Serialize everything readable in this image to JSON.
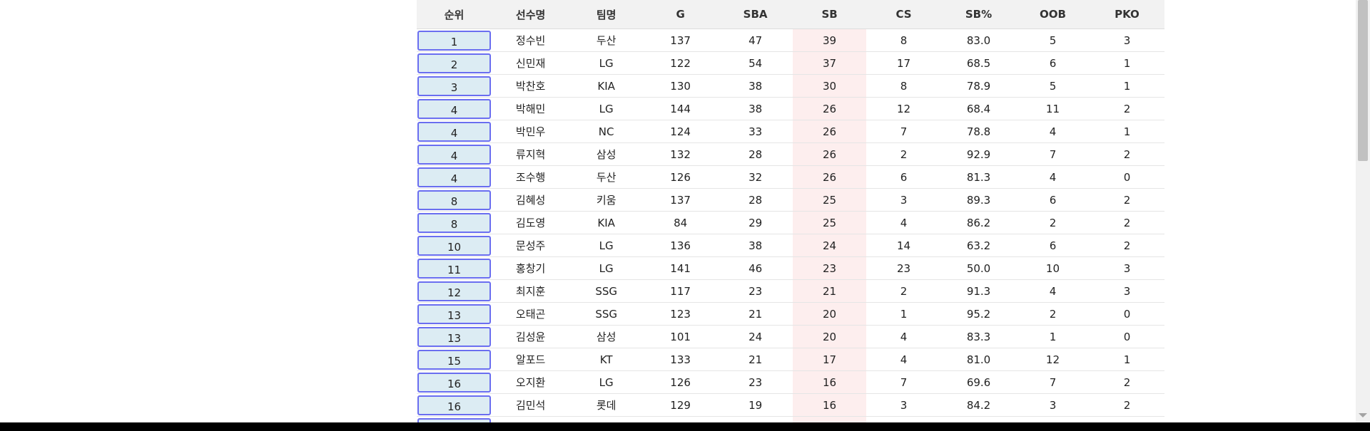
{
  "table": {
    "headers": {
      "rank": "순위",
      "name": "선수명",
      "team": "팀명",
      "g": "G",
      "sba": "SBA",
      "sb": "SB",
      "cs": "CS",
      "sbp": "SB%",
      "oob": "OOB",
      "pko": "PKO"
    },
    "rows": [
      {
        "rank": "1",
        "name": "정수빈",
        "team": "두산",
        "g": "137",
        "sba": "47",
        "sb": "39",
        "cs": "8",
        "sbp": "83.0",
        "oob": "5",
        "pko": "3"
      },
      {
        "rank": "2",
        "name": "신민재",
        "team": "LG",
        "g": "122",
        "sba": "54",
        "sb": "37",
        "cs": "17",
        "sbp": "68.5",
        "oob": "6",
        "pko": "1"
      },
      {
        "rank": "3",
        "name": "박찬호",
        "team": "KIA",
        "g": "130",
        "sba": "38",
        "sb": "30",
        "cs": "8",
        "sbp": "78.9",
        "oob": "5",
        "pko": "1"
      },
      {
        "rank": "4",
        "name": "박해민",
        "team": "LG",
        "g": "144",
        "sba": "38",
        "sb": "26",
        "cs": "12",
        "sbp": "68.4",
        "oob": "11",
        "pko": "2"
      },
      {
        "rank": "4",
        "name": "박민우",
        "team": "NC",
        "g": "124",
        "sba": "33",
        "sb": "26",
        "cs": "7",
        "sbp": "78.8",
        "oob": "4",
        "pko": "1"
      },
      {
        "rank": "4",
        "name": "류지혁",
        "team": "삼성",
        "g": "132",
        "sba": "28",
        "sb": "26",
        "cs": "2",
        "sbp": "92.9",
        "oob": "7",
        "pko": "2"
      },
      {
        "rank": "4",
        "name": "조수행",
        "team": "두산",
        "g": "126",
        "sba": "32",
        "sb": "26",
        "cs": "6",
        "sbp": "81.3",
        "oob": "4",
        "pko": "0"
      },
      {
        "rank": "8",
        "name": "김혜성",
        "team": "키움",
        "g": "137",
        "sba": "28",
        "sb": "25",
        "cs": "3",
        "sbp": "89.3",
        "oob": "6",
        "pko": "2"
      },
      {
        "rank": "8",
        "name": "김도영",
        "team": "KIA",
        "g": "84",
        "sba": "29",
        "sb": "25",
        "cs": "4",
        "sbp": "86.2",
        "oob": "2",
        "pko": "2"
      },
      {
        "rank": "10",
        "name": "문성주",
        "team": "LG",
        "g": "136",
        "sba": "38",
        "sb": "24",
        "cs": "14",
        "sbp": "63.2",
        "oob": "6",
        "pko": "2"
      },
      {
        "rank": "11",
        "name": "홍창기",
        "team": "LG",
        "g": "141",
        "sba": "46",
        "sb": "23",
        "cs": "23",
        "sbp": "50.0",
        "oob": "10",
        "pko": "3"
      },
      {
        "rank": "12",
        "name": "최지훈",
        "team": "SSG",
        "g": "117",
        "sba": "23",
        "sb": "21",
        "cs": "2",
        "sbp": "91.3",
        "oob": "4",
        "pko": "3"
      },
      {
        "rank": "13",
        "name": "오태곤",
        "team": "SSG",
        "g": "123",
        "sba": "21",
        "sb": "20",
        "cs": "1",
        "sbp": "95.2",
        "oob": "2",
        "pko": "0"
      },
      {
        "rank": "13",
        "name": "김성윤",
        "team": "삼성",
        "g": "101",
        "sba": "24",
        "sb": "20",
        "cs": "4",
        "sbp": "83.3",
        "oob": "1",
        "pko": "0"
      },
      {
        "rank": "15",
        "name": "알포드",
        "team": "KT",
        "g": "133",
        "sba": "21",
        "sb": "17",
        "cs": "4",
        "sbp": "81.0",
        "oob": "12",
        "pko": "1"
      },
      {
        "rank": "16",
        "name": "오지환",
        "team": "LG",
        "g": "126",
        "sba": "23",
        "sb": "16",
        "cs": "7",
        "sbp": "69.6",
        "oob": "7",
        "pko": "2"
      },
      {
        "rank": "16",
        "name": "김민석",
        "team": "롯데",
        "g": "129",
        "sba": "19",
        "sb": "16",
        "cs": "3",
        "sbp": "84.2",
        "oob": "3",
        "pko": "2"
      },
      {
        "rank": "",
        "name": "",
        "team": "",
        "g": "",
        "sba": "",
        "sb": "",
        "cs": "",
        "sbp": "",
        "oob": "",
        "pko": ""
      }
    ]
  },
  "colors": {
    "rank_fill": "#dcecf3",
    "rank_border": "#6a6ef0",
    "sb_highlight": "#fdeeee",
    "header_bg": "#f2f2f2"
  }
}
